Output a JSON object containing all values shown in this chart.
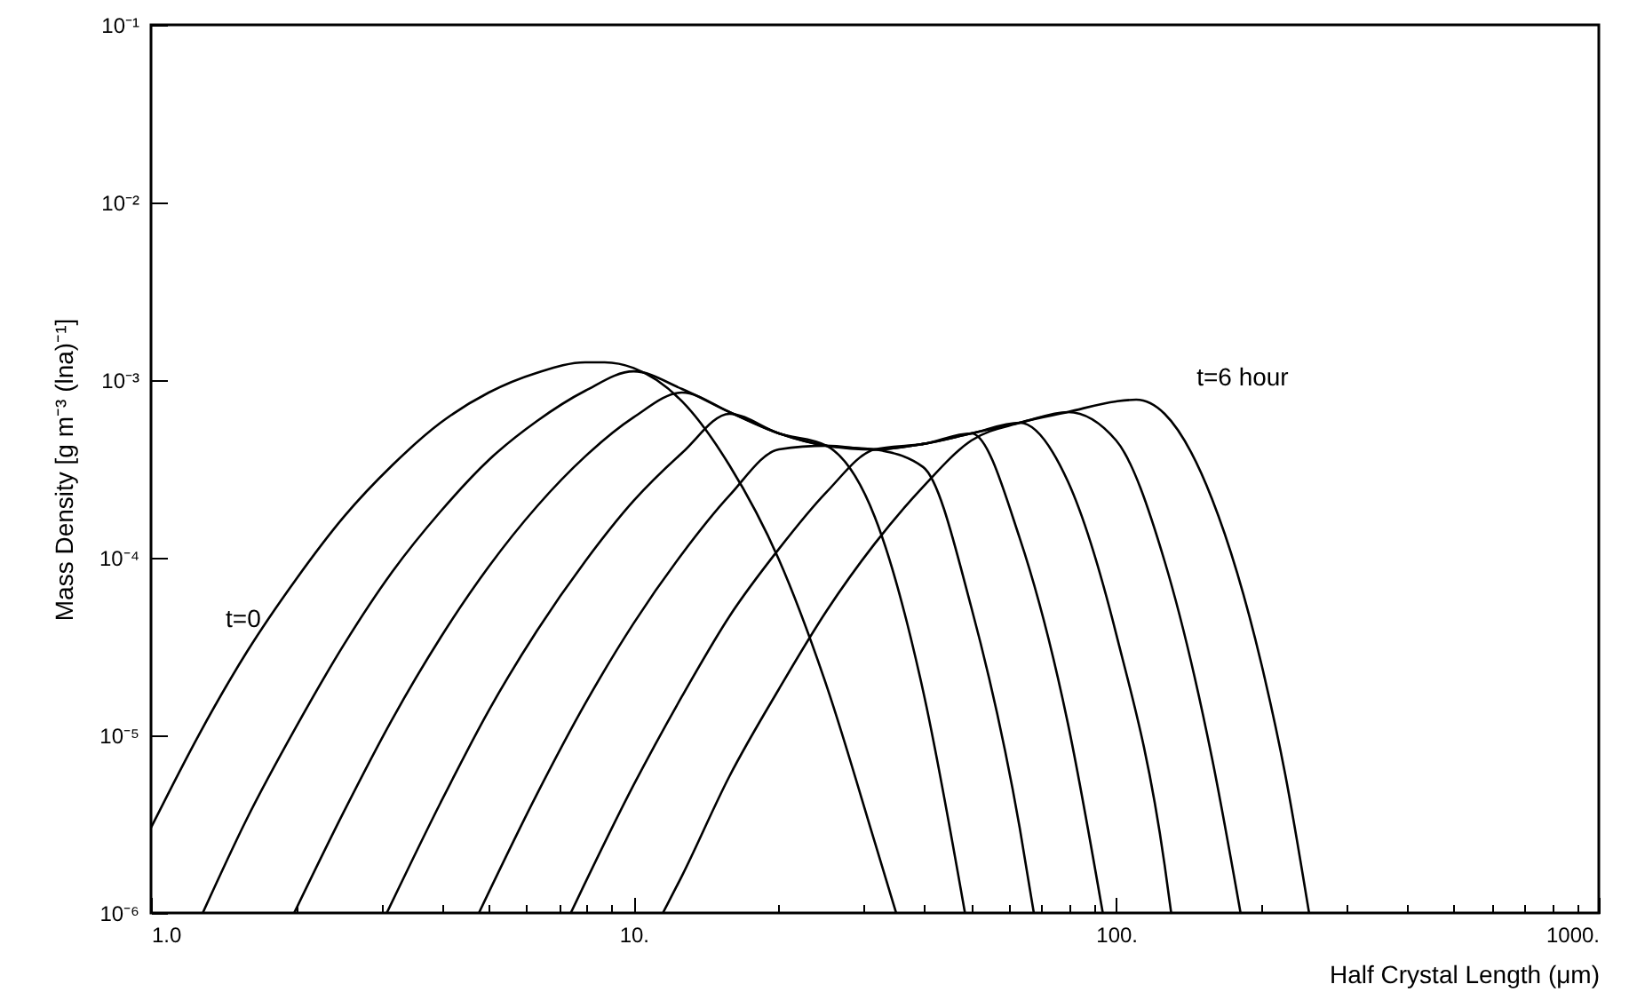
{
  "chart_data": {
    "type": "line",
    "xlabel": "Half Crystal Length  (μm)",
    "ylabel": "Mass Density [g m⁻³ (lna)⁻¹]",
    "log": "xy",
    "line_style": "solid",
    "xlim": [
      1,
      1000
    ],
    "ylim": [
      1e-06,
      0.1
    ],
    "xticks": [
      {
        "value": 1,
        "label": "1.0"
      },
      {
        "value": 2,
        "label": null
      },
      {
        "value": 3,
        "label": null
      },
      {
        "value": 4,
        "label": null
      },
      {
        "value": 5,
        "label": null
      },
      {
        "value": 6,
        "label": null
      },
      {
        "value": 7,
        "label": null
      },
      {
        "value": 8,
        "label": null
      },
      {
        "value": 9,
        "label": null
      },
      {
        "value": 10,
        "label": "10."
      },
      {
        "value": 20,
        "label": null
      },
      {
        "value": 30,
        "label": null
      },
      {
        "value": 40,
        "label": null
      },
      {
        "value": 50,
        "label": null
      },
      {
        "value": 60,
        "label": null
      },
      {
        "value": 70,
        "label": null
      },
      {
        "value": 80,
        "label": null
      },
      {
        "value": 90,
        "label": null
      },
      {
        "value": 100,
        "label": "100."
      },
      {
        "value": 200,
        "label": null
      },
      {
        "value": 300,
        "label": null
      },
      {
        "value": 400,
        "label": null
      },
      {
        "value": 500,
        "label": null
      },
      {
        "value": 600,
        "label": null
      },
      {
        "value": 700,
        "label": null
      },
      {
        "value": 800,
        "label": null
      },
      {
        "value": 900,
        "label": null
      },
      {
        "value": 1000,
        "label": "1000."
      }
    ],
    "yticks": [
      {
        "value": 1e-06,
        "label": "10⁻⁶"
      },
      {
        "value": 1e-05,
        "label": "10⁻⁵"
      },
      {
        "value": 0.0001,
        "label": "10⁻⁴"
      },
      {
        "value": 0.001,
        "label": "10⁻³"
      },
      {
        "value": 0.01,
        "label": "10⁻²"
      },
      {
        "value": 0.1,
        "label": "10⁻¹"
      }
    ],
    "annotations": [
      "t=0",
      "t=6 hour"
    ],
    "series": [
      {
        "color": "#000000",
        "x": [
          1,
          1.26,
          1.58,
          2.0,
          2.51,
          3.16,
          3.98,
          5.01,
          6.31,
          7.94,
          8.71,
          10,
          12.6,
          15.8,
          20.0,
          25.1,
          31.6,
          35.0
        ],
        "values": [
          3.02e-06,
          1.02e-05,
          2.95e-05,
          7.59e-05,
          0.00017,
          0.000331,
          0.000575,
          0.000851,
          0.0011,
          0.00126,
          0.00126,
          0.00117,
          0.000759,
          0.000331,
          9.77e-05,
          1.91e-05,
          2.51e-06,
          1e-06
        ]
      },
      {
        "color": "#000000",
        "x": [
          1.28,
          1.58,
          2.0,
          2.51,
          3.16,
          3.98,
          5.01,
          6.31,
          7.94,
          10,
          12.6,
          15.8,
          20.0,
          25.1,
          31.6,
          39.8,
          48.6
        ],
        "values": [
          1e-06,
          3.39e-06,
          1.12e-05,
          3.24e-05,
          8.32e-05,
          0.000182,
          0.000355,
          0.000589,
          0.000871,
          0.00112,
          0.000891,
          0.000661,
          0.000501,
          0.000427,
          0.00017,
          1.78e-05,
          1e-06
        ]
      },
      {
        "color": "#000000",
        "x": [
          1.98,
          2.51,
          3.16,
          3.98,
          5.01,
          6.31,
          7.94,
          10,
          12.6,
          15.8,
          20.0,
          25.1,
          31.6,
          39.8,
          50.1,
          63.1,
          67.5
        ],
        "values": [
          1e-06,
          3.72e-06,
          1.23e-05,
          3.55e-05,
          8.91e-05,
          0.000195,
          0.000372,
          0.000617,
          0.000851,
          0.000661,
          0.000501,
          0.000427,
          0.000407,
          0.000324,
          5.25e-05,
          3.02e-06,
          1e-06
        ]
      },
      {
        "color": "#000000",
        "x": [
          3.08,
          3.98,
          5.01,
          6.31,
          7.94,
          10,
          12.6,
          15.8,
          20.0,
          25.1,
          31.6,
          39.8,
          50.1,
          63.1,
          79.4,
          93.8
        ],
        "values": [
          1e-06,
          4.17e-06,
          1.38e-05,
          3.89e-05,
          9.55e-05,
          0.000209,
          0.000389,
          0.000646,
          0.000501,
          0.000427,
          0.000407,
          0.000437,
          0.000501,
          0.000129,
          1.17e-05,
          1e-06
        ]
      },
      {
        "color": "#000000",
        "x": [
          4.78,
          6.31,
          7.94,
          10,
          12.6,
          15.8,
          20.0,
          25.1,
          31.6,
          39.8,
          50.1,
          63.1,
          79.4,
          100,
          126,
          130
        ],
        "values": [
          1e-06,
          4.68e-06,
          1.51e-05,
          4.27e-05,
          0.000105,
          0.000224,
          0.000407,
          0.000427,
          0.000407,
          0.000437,
          0.000501,
          0.000575,
          0.000269,
          3.72e-05,
          1.86e-06,
          1e-06
        ]
      },
      {
        "color": "#000000",
        "x": [
          7.41,
          10,
          12.6,
          15.8,
          20.0,
          25.1,
          31.6,
          39.8,
          50.1,
          63.1,
          79.4,
          100,
          126,
          158,
          181
        ],
        "values": [
          1e-06,
          5.25e-06,
          1.66e-05,
          4.68e-05,
          0.000112,
          0.000234,
          0.000407,
          0.000437,
          0.000501,
          0.000575,
          0.000661,
          0.000457,
          9.55e-05,
          7.41e-06,
          1e-06
        ]
      },
      {
        "color": "#000000",
        "x": [
          11.5,
          12.6,
          15.8,
          20.0,
          25.1,
          31.6,
          39.8,
          50.1,
          63.1,
          79.4,
          100,
          110,
          126,
          158,
          200,
          224,
          251
        ],
        "values": [
          1e-06,
          1.62e-06,
          5.89e-06,
          1.82e-05,
          5.01e-05,
          0.00012,
          0.000251,
          0.000457,
          0.000575,
          0.000661,
          0.000759,
          0.000776,
          0.000646,
          0.000214,
          2.51e-05,
          6.03e-06,
          1e-06
        ]
      }
    ]
  }
}
